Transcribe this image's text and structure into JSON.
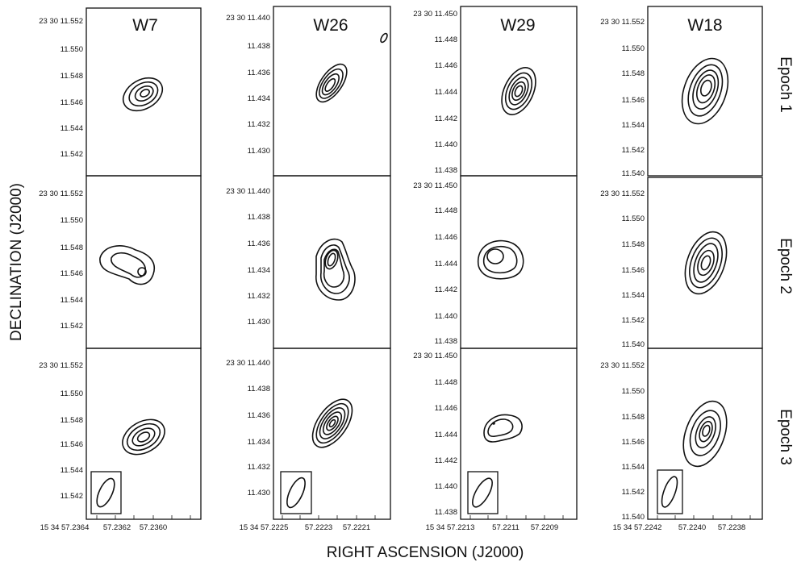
{
  "figure": {
    "columns": [
      "W7",
      "W26",
      "W29",
      "W18"
    ],
    "epochs": [
      "Epoch 1",
      "Epoch 2",
      "Epoch 3"
    ],
    "ylabel": "DECLINATION (J2000)",
    "xlabel": "RIGHT ASCENSION (J2000)",
    "y_ticks": [
      [
        "23 30 11.552",
        "11.550",
        "11.548",
        "11.546",
        "11.544",
        "11.542"
      ],
      [
        "23 30 11.440",
        "11.438",
        "11.436",
        "11.434",
        "11.432",
        "11.430"
      ],
      [
        "23 30 11.450",
        "11.448",
        "11.446",
        "11.444",
        "11.442",
        "11.440",
        "11.438"
      ],
      [
        "23 30 11.552",
        "11.550",
        "11.548",
        "11.546",
        "11.544",
        "11.542",
        "11.540"
      ]
    ],
    "x_ticks": [
      [
        "15 34 57.2364",
        "57.2362",
        "57.2360"
      ],
      [
        "15 34 57.2225",
        "57.2223",
        "57.2221"
      ],
      [
        "15 34 57.2213",
        "57.2211",
        "57.2209"
      ],
      [
        "15 34 57.2242",
        "57.2240",
        "57.2238"
      ]
    ]
  }
}
